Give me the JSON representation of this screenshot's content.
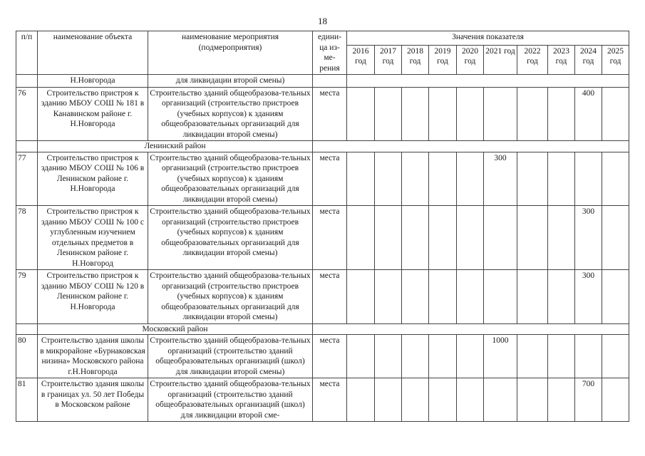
{
  "page_number": "18",
  "header": {
    "num": "п/п",
    "object": "наименование объекта",
    "event": "наименование мероприятия (подмероприятия)",
    "unit": "едини-ца из-ме-рения",
    "values": "Значения показателя",
    "years": [
      "2016 год",
      "2017 год",
      "2018 год",
      "2019 год",
      "2020 год",
      "2021 год",
      "2022 год",
      "2023 год",
      "2024 год",
      "2025 год"
    ]
  },
  "continuation": {
    "object": "Н.Новгорода",
    "event": "для ликвидации второй смены)"
  },
  "rows": [
    {
      "type": "item",
      "num": "76",
      "object": "Строительство пристроя к зданию МБОУ СОШ № 181 в Канавинском районе г. Н.Новгорода",
      "event": "Строительство зданий общеобразова-тельных организаций (строительство пристроев (учебных корпусов) к зданиям общеобразовательных организаций для ликвидации второй смены)",
      "unit": "места",
      "values": [
        "",
        "",
        "",
        "",
        "",
        "",
        "",
        "",
        "400",
        ""
      ]
    },
    {
      "type": "section",
      "title": "Ленинский район"
    },
    {
      "type": "item",
      "num": "77",
      "object": "Строительство пристроя к зданию МБОУ СОШ № 106 в Ленинском районе г. Н.Новгорода",
      "event": "Строительство зданий общеобразова-тельных организаций (строительство пристроев (учебных корпусов) к зданиям общеобразовательных организаций для ликвидации второй смены)",
      "unit": "места",
      "values": [
        "",
        "",
        "",
        "",
        "",
        "300",
        "",
        "",
        "",
        ""
      ]
    },
    {
      "type": "item",
      "num": "78",
      "object": "Строительство пристроя к зданию МБОУ СОШ № 100 с углубленным изучением отдельных предметов в Ленинском районе г. Н.Новгород",
      "event": "Строительство зданий общеобразова-тельных организаций (строительство пристроев (учебных корпусов) к зданиям общеобразовательных организаций для ликвидации второй смены)",
      "unit": "места",
      "values": [
        "",
        "",
        "",
        "",
        "",
        "",
        "",
        "",
        "300",
        ""
      ]
    },
    {
      "type": "item",
      "num": "79",
      "object": "Строительство пристроя к зданию МБОУ СОШ № 120 в Ленинском районе г. Н.Новгорода",
      "event": "Строительство зданий общеобразова-тельных организаций (строительство пристроев (учебных корпусов) к зданиям общеобразовательных организаций для ликвидации второй смены)",
      "unit": "места",
      "values": [
        "",
        "",
        "",
        "",
        "",
        "",
        "",
        "",
        "300",
        ""
      ]
    },
    {
      "type": "section",
      "title": "Московский район"
    },
    {
      "type": "item",
      "num": "80",
      "object": "Строительство здания школы в микрорайоне «Бурнаковская низина» Московского района г.Н.Новгорода",
      "event": "Строительство зданий общеобразова-тельных организаций (строительство зданий общеобразовательных организаций (школ) для ликвидации второй смены)",
      "unit": "места",
      "values": [
        "",
        "",
        "",
        "",
        "",
        "1000",
        "",
        "",
        "",
        ""
      ]
    },
    {
      "type": "item",
      "num": "81",
      "object": "Строительство здания школы в границах ул. 50 лет Победы в Московском районе",
      "event": "Строительство зданий общеобразова-тельных организаций (строительство зданий общеобразовательных организаций (школ) для ликвидации второй сме-",
      "unit": "места",
      "values": [
        "",
        "",
        "",
        "",
        "",
        "",
        "",
        "",
        "700",
        ""
      ]
    }
  ]
}
